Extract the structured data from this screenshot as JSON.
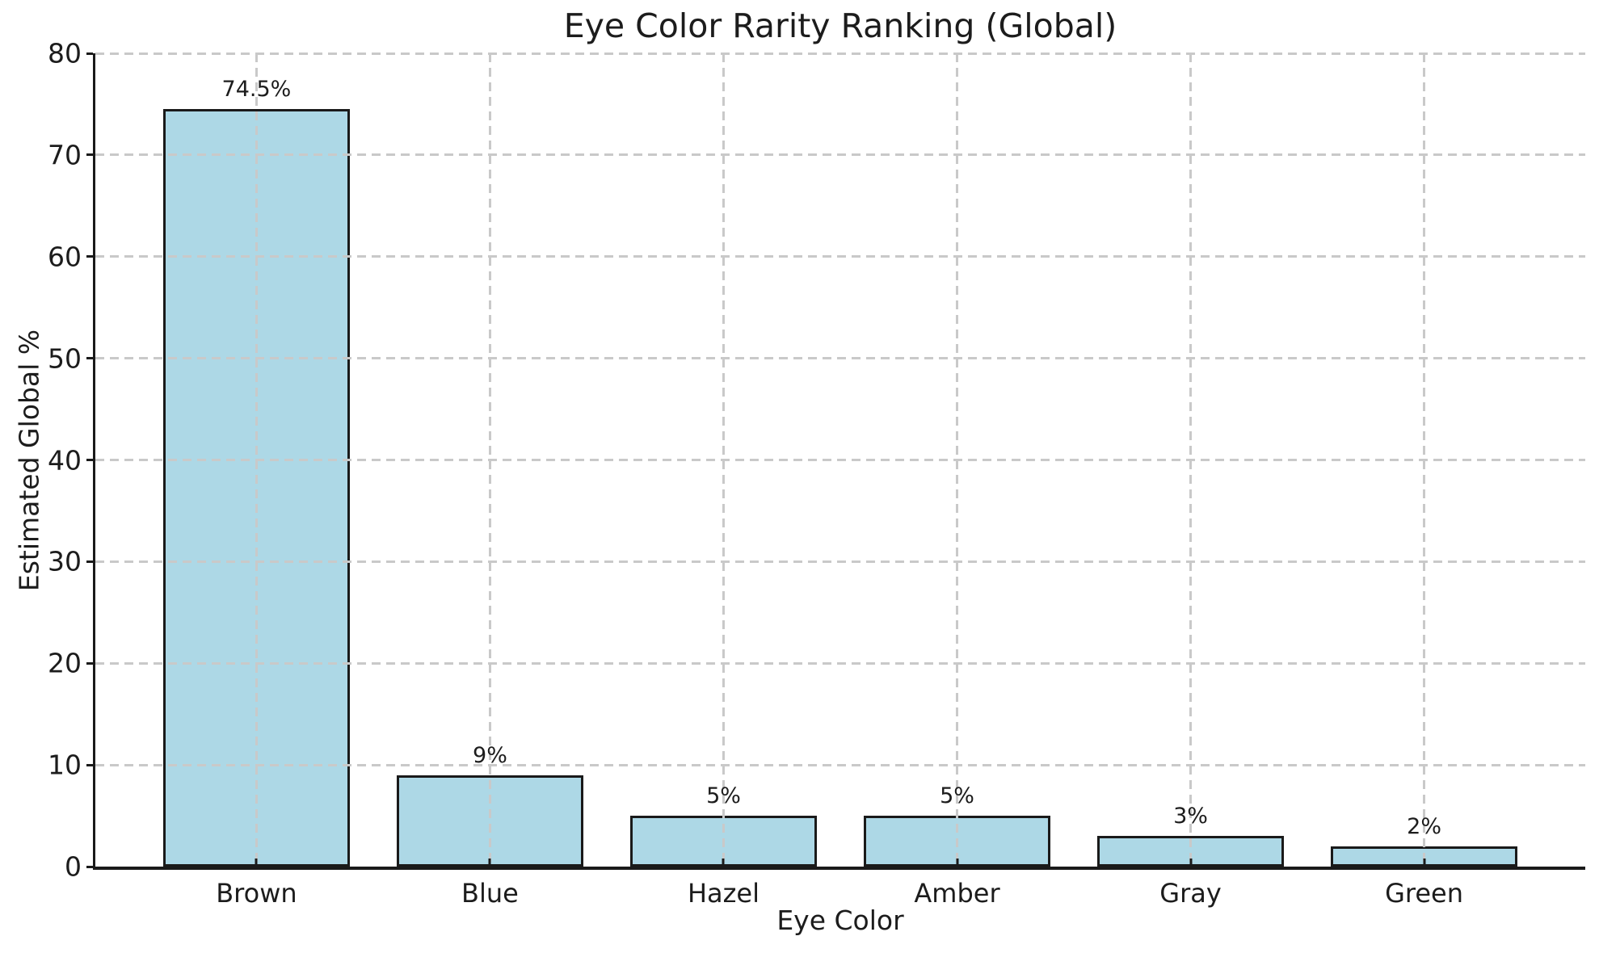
{
  "chart_data": {
    "type": "bar",
    "title": "Eye Color Rarity Ranking (Global)",
    "xlabel": "Eye Color",
    "ylabel": "Estimated Global %",
    "categories": [
      "Brown",
      "Blue",
      "Hazel",
      "Amber",
      "Gray",
      "Green"
    ],
    "values": [
      74.5,
      9,
      5,
      5,
      3,
      2
    ],
    "value_labels": [
      "74.5%",
      "9%",
      "5%",
      "5%",
      "3%",
      "2%"
    ],
    "ylim": [
      0,
      80
    ],
    "yticks": [
      0,
      10,
      20,
      30,
      40,
      50,
      60,
      70,
      80
    ],
    "grid": true,
    "grid_style": "dashed",
    "legend": "none",
    "colors": {
      "bar_fill": "#ADD8E6",
      "bar_edge": "#1a1a1a",
      "grid": "#c9c9c9",
      "text": "#1c1c1c",
      "background": "#ffffff"
    }
  }
}
